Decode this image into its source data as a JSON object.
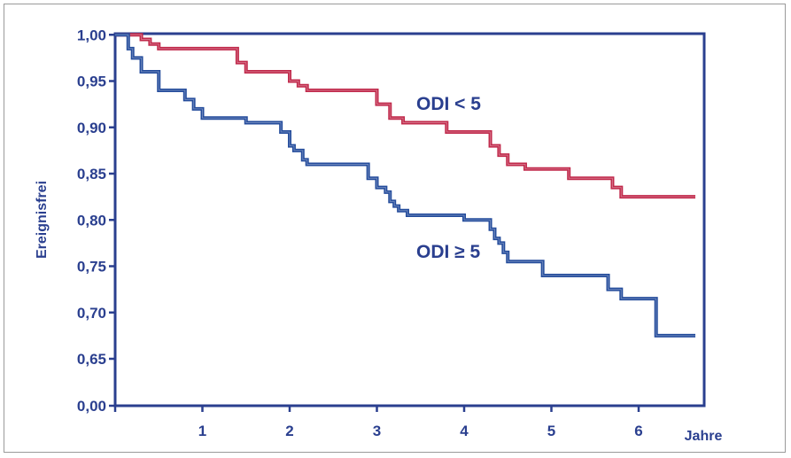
{
  "chart_data": {
    "type": "line",
    "step": true,
    "ylabel": "Ereignisfrei",
    "xlabel": "Jahre",
    "x_ticks": [
      "1",
      "2",
      "3",
      "4",
      "5",
      "6"
    ],
    "y_ticks": [
      "0,00",
      "0,65",
      "0,70",
      "0,75",
      "0,80",
      "0,85",
      "0,90",
      "0,95",
      "1,00"
    ],
    "axis_break": "between 0,00 and 0,65",
    "grid": false,
    "colors": {
      "axis": "#2a3f8f",
      "odi_low": "#c0284a",
      "odi_high": "#234b9b",
      "text": "#2a3f8f"
    },
    "series": [
      {
        "name": "ODI < 5",
        "x": [
          0,
          0.3,
          0.4,
          0.5,
          1.4,
          1.5,
          2.0,
          2.1,
          2.2,
          3.0,
          3.15,
          3.3,
          3.8,
          4.3,
          4.4,
          4.5,
          4.7,
          5.2,
          5.7,
          5.8,
          6.65
        ],
        "y": [
          1.0,
          0.995,
          0.99,
          0.985,
          0.97,
          0.96,
          0.95,
          0.945,
          0.94,
          0.925,
          0.91,
          0.905,
          0.895,
          0.88,
          0.87,
          0.86,
          0.855,
          0.845,
          0.835,
          0.825,
          0.825
        ]
      },
      {
        "name": "ODI ≥ 5",
        "x": [
          0,
          0.15,
          0.2,
          0.3,
          0.5,
          0.8,
          0.9,
          1.0,
          1.5,
          1.9,
          2.0,
          2.05,
          2.15,
          2.2,
          2.9,
          3.0,
          3.1,
          3.15,
          3.2,
          3.25,
          3.35,
          4.0,
          4.3,
          4.35,
          4.4,
          4.45,
          4.5,
          4.9,
          5.65,
          5.8,
          6.2,
          6.65
        ],
        "y": [
          1.0,
          0.985,
          0.975,
          0.96,
          0.94,
          0.93,
          0.92,
          0.91,
          0.905,
          0.895,
          0.88,
          0.875,
          0.865,
          0.86,
          0.845,
          0.835,
          0.83,
          0.82,
          0.815,
          0.81,
          0.805,
          0.8,
          0.79,
          0.78,
          0.775,
          0.765,
          0.755,
          0.74,
          0.725,
          0.715,
          0.675,
          0.675
        ]
      }
    ]
  }
}
